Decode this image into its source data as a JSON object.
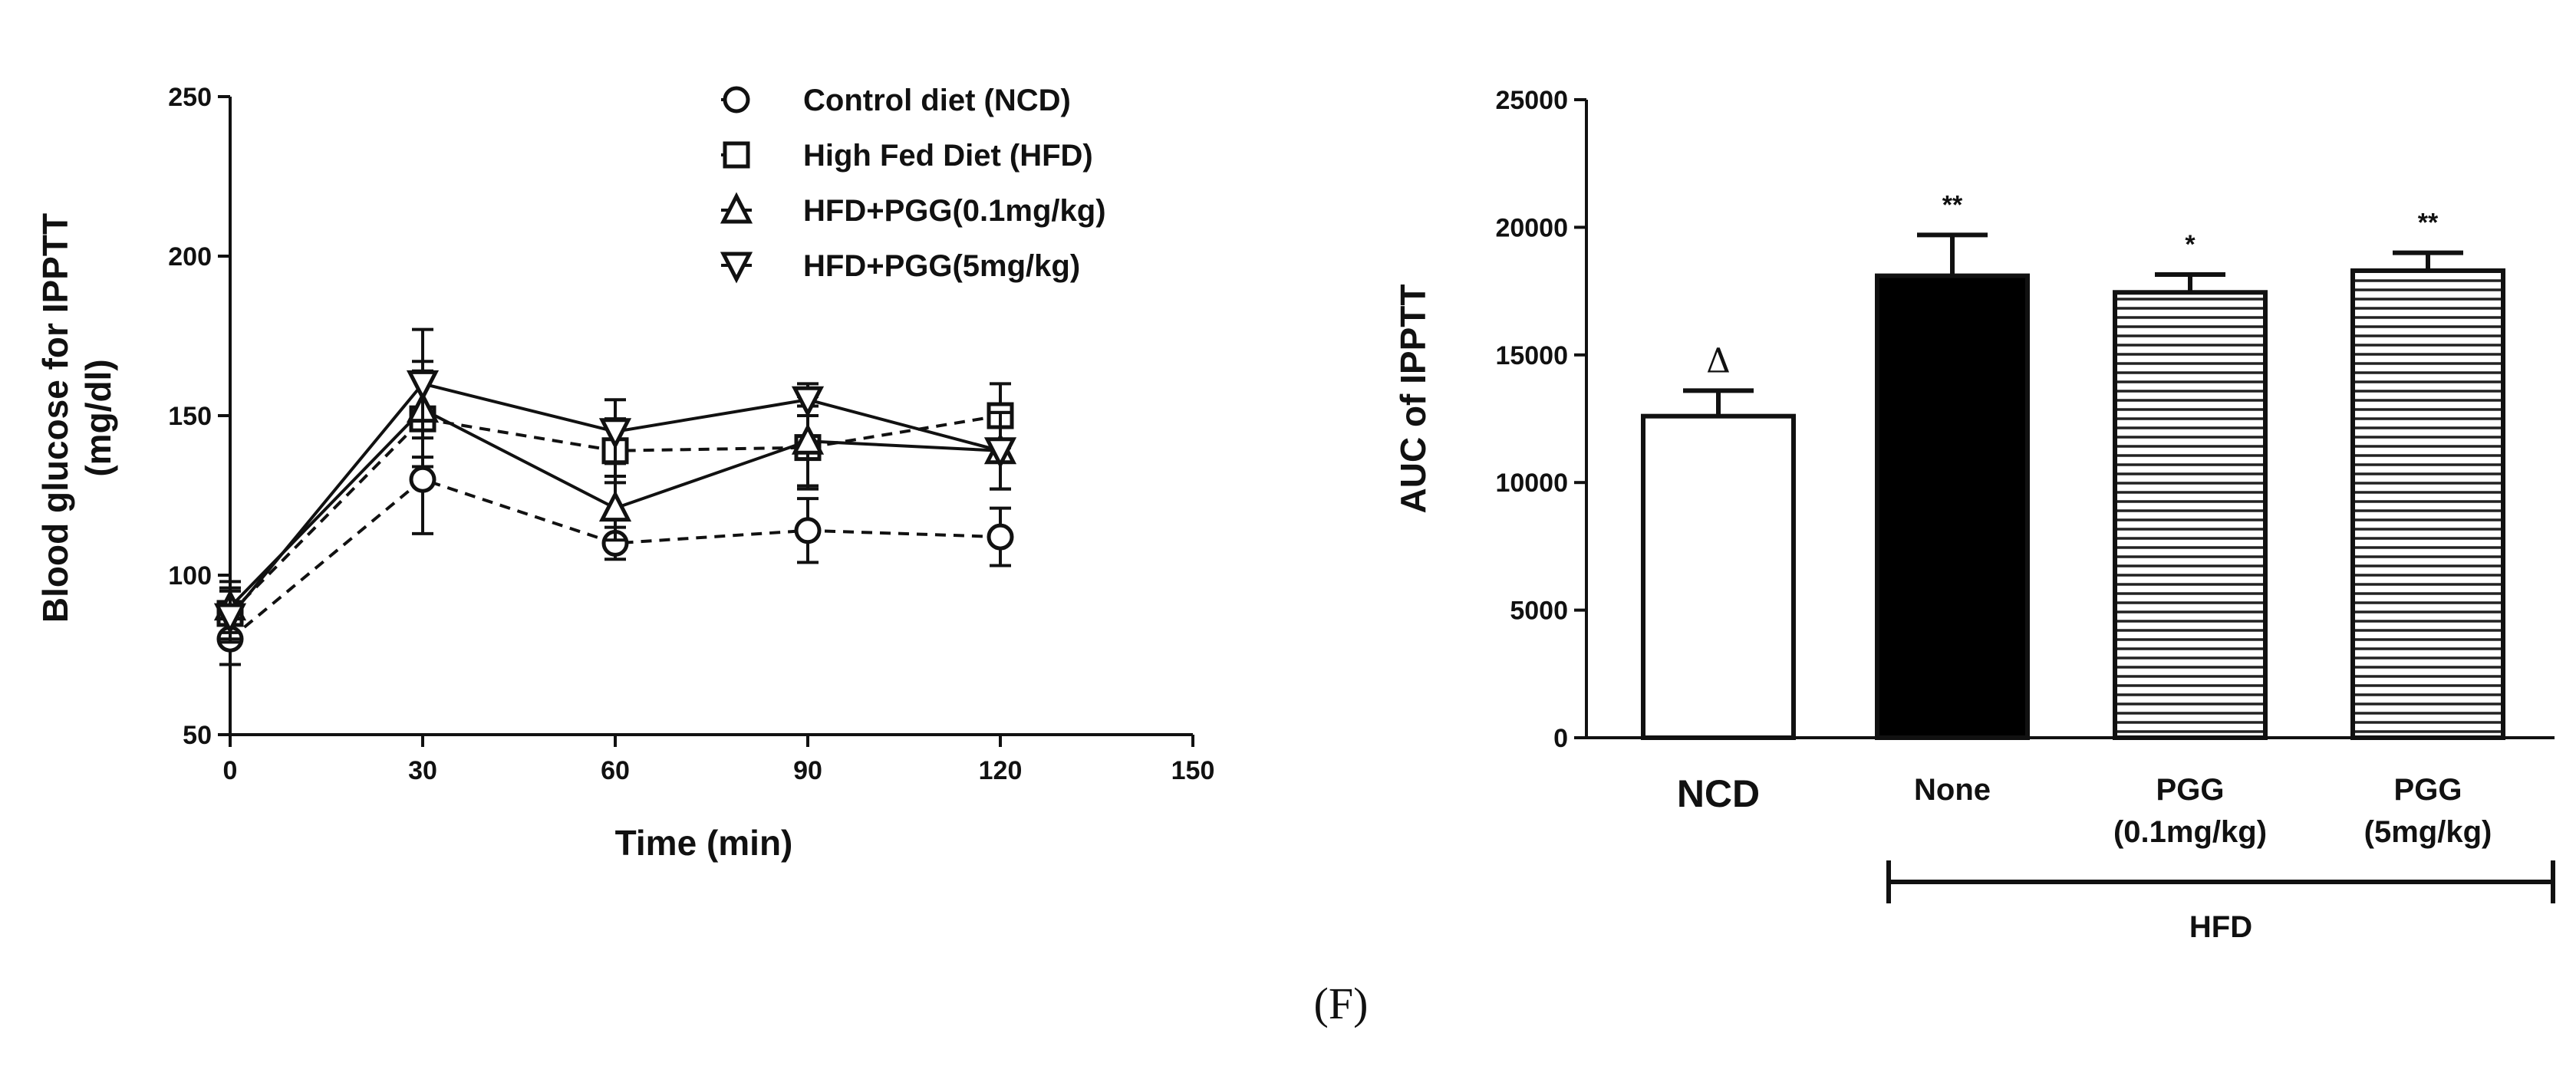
{
  "panel_label": "(F)",
  "chart_data": [
    {
      "type": "line",
      "title": "",
      "xlabel": "Time (min)",
      "ylabel": [
        "Blood glucose for IPPTT",
        "(mg/dl)"
      ],
      "xlim": [
        0,
        150
      ],
      "ylim": [
        50,
        250
      ],
      "xticks": [
        0,
        30,
        60,
        90,
        120,
        150
      ],
      "yticks": [
        50,
        100,
        150,
        200,
        250
      ],
      "legend_position": "top-right",
      "x": [
        0,
        30,
        60,
        90,
        120
      ],
      "series": [
        {
          "name": "Control diet (NCD)",
          "marker": "circle",
          "dashed": true,
          "values": [
            80,
            130,
            110,
            114,
            112
          ],
          "errors": [
            8,
            17,
            5,
            10,
            9
          ]
        },
        {
          "name": "High Fed Diet (HFD)",
          "marker": "square",
          "dashed": true,
          "values": [
            88,
            149,
            139,
            140,
            150
          ],
          "errors": [
            8,
            15,
            10,
            13,
            10
          ]
        },
        {
          "name": "HFD+PGG(0.1mg/kg)",
          "marker": "triangle-up",
          "dashed": false,
          "values": [
            90,
            152,
            121,
            142,
            139
          ],
          "errors": [
            8,
            15,
            10,
            14,
            12
          ]
        },
        {
          "name": "HFD+PGG(5mg/kg)",
          "marker": "triangle-down",
          "dashed": false,
          "values": [
            87,
            160,
            145,
            155,
            139
          ],
          "errors": [
            8,
            17,
            10,
            5,
            12
          ]
        }
      ]
    },
    {
      "type": "bar",
      "title": "",
      "xlabel": "",
      "ylabel": "AUC of IPPTT",
      "ylim": [
        0,
        25000
      ],
      "yticks": [
        0,
        5000,
        10000,
        15000,
        20000,
        25000
      ],
      "group_label": "HFD",
      "categories": [
        [
          "NCD"
        ],
        [
          "None"
        ],
        [
          "PGG",
          "(0.1mg/kg)"
        ],
        [
          "PGG",
          "(5mg/kg)"
        ]
      ],
      "values": [
        12600,
        18100,
        17450,
        18300
      ],
      "errors": [
        1000,
        1600,
        700,
        700
      ],
      "fills": [
        "white",
        "black",
        "hatched",
        "hatched"
      ],
      "annotations": [
        "Δ",
        "**",
        "*",
        "**"
      ]
    }
  ]
}
